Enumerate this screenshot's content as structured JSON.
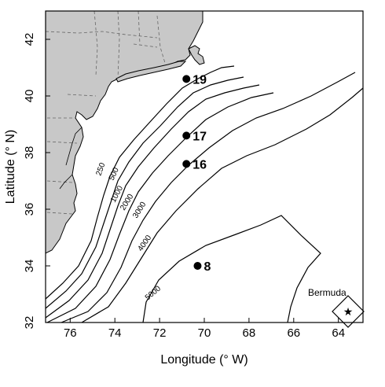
{
  "map": {
    "x_axis": {
      "label": "Longitude (° W)",
      "ticks": [
        "76",
        "74",
        "72",
        "70",
        "68",
        "66",
        "64"
      ]
    },
    "y_axis": {
      "label": "Latitude (° N)",
      "ticks": [
        "32",
        "34",
        "36",
        "38",
        "40",
        "42"
      ]
    },
    "x_range_deg_w": [
      77.1,
      62.9
    ],
    "y_range_deg_n": [
      32,
      43
    ],
    "land_color": "#c8c8c8",
    "contour_color": "#000000",
    "isobath_labels": [
      "250",
      "500",
      "1000",
      "2000",
      "3000",
      "4000",
      "5000"
    ],
    "stations": [
      {
        "label": "19",
        "lon_w": 70.8,
        "lat_n": 40.6
      },
      {
        "label": "17",
        "lon_w": 70.8,
        "lat_n": 38.6
      },
      {
        "label": "16",
        "lon_w": 70.8,
        "lat_n": 37.6
      },
      {
        "label": "8",
        "lon_w": 70.3,
        "lat_n": 34.0
      }
    ],
    "landmark": {
      "label": "Bermuda",
      "symbol": "star-icon",
      "lon_w": 63.7,
      "lat_n": 32.5
    }
  }
}
